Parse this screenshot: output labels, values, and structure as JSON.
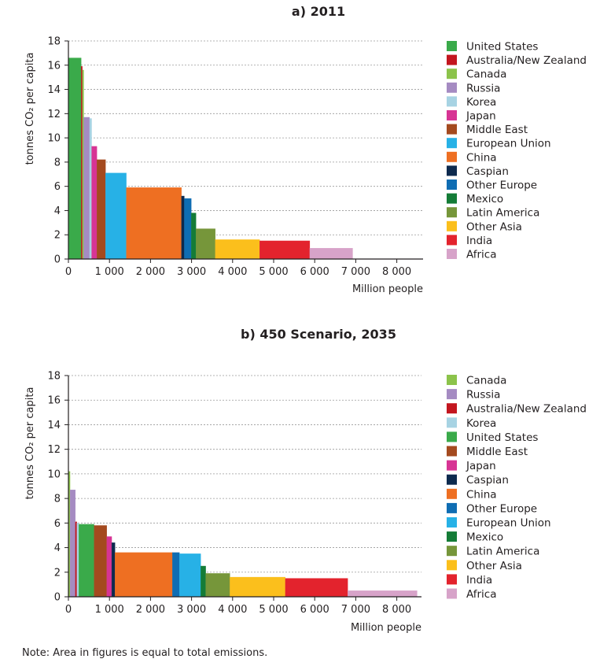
{
  "note": "Note: Area in figures is equal to total emissions.",
  "chart_data": [
    {
      "type": "bar",
      "title": "a)   2011",
      "xlabel": "Million people",
      "ylabel": "tonnes CO₂ per capita",
      "xlim": [
        0,
        8500
      ],
      "ylim": [
        0,
        18
      ],
      "x_ticks": [
        0,
        1000,
        2000,
        3000,
        4000,
        5000,
        6000,
        7000,
        8000
      ],
      "x_tick_labels": [
        "0",
        "1 000",
        "2 000",
        "3 000",
        "4 000",
        "5 000",
        "6 000",
        "7 000",
        "8 000"
      ],
      "y_ticks": [
        0,
        2,
        4,
        6,
        8,
        10,
        12,
        14,
        16,
        18
      ],
      "grid": "horizontal dashed",
      "legend_position": "right",
      "series": [
        {
          "name": "United States",
          "population": 312,
          "per_capita": 16.6,
          "color": "#3aaa4a"
        },
        {
          "name": "Australia/New Zealand",
          "population": 27,
          "per_capita": 15.9,
          "color": "#c3161f"
        },
        {
          "name": "Canada",
          "population": 34,
          "per_capita": 15.6,
          "color": "#8cc34b"
        },
        {
          "name": "Russia",
          "population": 143,
          "per_capita": 11.7,
          "color": "#a58bc2"
        },
        {
          "name": "Korea",
          "population": 50,
          "per_capita": 11.6,
          "color": "#a7d3e3"
        },
        {
          "name": "Japan",
          "population": 128,
          "per_capita": 9.3,
          "color": "#d73494"
        },
        {
          "name": "Middle East",
          "population": 211,
          "per_capita": 8.2,
          "color": "#a44a1f"
        },
        {
          "name": "European Union",
          "population": 505,
          "per_capita": 7.1,
          "color": "#27b1e6"
        },
        {
          "name": "China",
          "population": 1344,
          "per_capita": 5.9,
          "color": "#ee6f22"
        },
        {
          "name": "Caspian",
          "population": 70,
          "per_capita": 5.2,
          "color": "#0d2a4e"
        },
        {
          "name": "Other Europe",
          "population": 170,
          "per_capita": 5.0,
          "color": "#0f6db3"
        },
        {
          "name": "Mexico",
          "population": 115,
          "per_capita": 3.8,
          "color": "#147c37"
        },
        {
          "name": "Latin America",
          "population": 470,
          "per_capita": 2.5,
          "color": "#76963a"
        },
        {
          "name": "Other Asia",
          "population": 1080,
          "per_capita": 1.6,
          "color": "#fbbf1c"
        },
        {
          "name": "India",
          "population": 1221,
          "per_capita": 1.5,
          "color": "#e3232d"
        },
        {
          "name": "Africa",
          "population": 1045,
          "per_capita": 0.9,
          "color": "#d7a3c9"
        }
      ]
    },
    {
      "type": "bar",
      "title": "b)   450 Scenario, 2035",
      "xlabel": "Million people",
      "ylabel": "tonnes CO₂ per capita",
      "xlim": [
        0,
        8500
      ],
      "ylim": [
        0,
        18
      ],
      "x_ticks": [
        0,
        1000,
        2000,
        3000,
        4000,
        5000,
        6000,
        7000,
        8000
      ],
      "x_tick_labels": [
        "0",
        "1 000",
        "2 000",
        "3 000",
        "4 000",
        "5 000",
        "6 000",
        "7 000",
        "8 000"
      ],
      "y_ticks": [
        0,
        2,
        4,
        6,
        8,
        10,
        12,
        14,
        16,
        18
      ],
      "grid": "horizontal dashed",
      "legend_position": "right",
      "series": [
        {
          "name": "Canada",
          "population": 40,
          "per_capita": 10.2,
          "color": "#8cc34b"
        },
        {
          "name": "Russia",
          "population": 130,
          "per_capita": 8.7,
          "color": "#a58bc2"
        },
        {
          "name": "Australia/New Zealand",
          "population": 35,
          "per_capita": 6.1,
          "color": "#c3161f"
        },
        {
          "name": "Korea",
          "population": 50,
          "per_capita": 6.0,
          "color": "#a7d3e3"
        },
        {
          "name": "United States",
          "population": 370,
          "per_capita": 5.9,
          "color": "#3aaa4a"
        },
        {
          "name": "Middle East",
          "population": 310,
          "per_capita": 5.8,
          "color": "#a44a1f"
        },
        {
          "name": "Japan",
          "population": 120,
          "per_capita": 4.9,
          "color": "#d73494"
        },
        {
          "name": "Caspian",
          "population": 80,
          "per_capita": 4.4,
          "color": "#0d2a4e"
        },
        {
          "name": "China",
          "population": 1400,
          "per_capita": 3.6,
          "color": "#ee6f22"
        },
        {
          "name": "Other Europe",
          "population": 170,
          "per_capita": 3.6,
          "color": "#0f6db3"
        },
        {
          "name": "European Union",
          "population": 520,
          "per_capita": 3.5,
          "color": "#27b1e6"
        },
        {
          "name": "Mexico",
          "population": 120,
          "per_capita": 2.5,
          "color": "#147c37"
        },
        {
          "name": "Latin America",
          "population": 590,
          "per_capita": 1.9,
          "color": "#76963a"
        },
        {
          "name": "Other Asia",
          "population": 1350,
          "per_capita": 1.6,
          "color": "#fbbf1c"
        },
        {
          "name": "India",
          "population": 1520,
          "per_capita": 1.5,
          "color": "#e3232d"
        },
        {
          "name": "Africa",
          "population": 1690,
          "per_capita": 0.5,
          "color": "#d7a3c9"
        }
      ]
    }
  ]
}
